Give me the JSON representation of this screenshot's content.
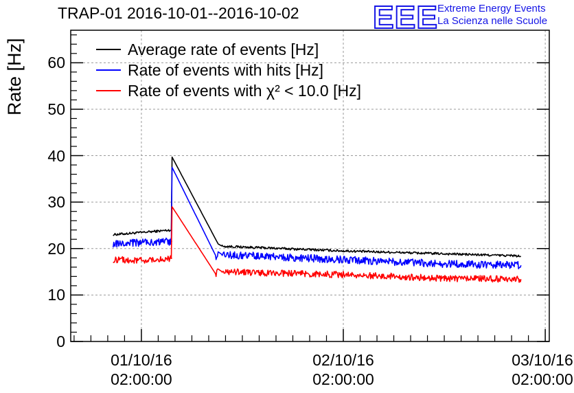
{
  "header": {
    "title": "TRAP-01 2016-10-01--2016-10-02",
    "logo_text": "EEE",
    "logo_line1": "Extreme Energy Events",
    "logo_line2": "La Scienza nelle Scuole"
  },
  "chart_data": {
    "type": "line",
    "title": "TRAP-01 2016-10-01--2016-10-02",
    "xlabel": "",
    "ylabel": "Rate [Hz]",
    "ylim": [
      0,
      67
    ],
    "xlim": [
      -0.35,
      2.02
    ],
    "y_ticks": [
      "0",
      "10",
      "20",
      "30",
      "40",
      "50",
      "60"
    ],
    "x_ticks": [
      {
        "date": "01/10/16",
        "time": "02:00:00"
      },
      {
        "date": "02/10/16",
        "time": "02:00:00"
      },
      {
        "date": "03/10/16",
        "time": "02:00:00"
      }
    ],
    "grid": true,
    "legend_position": "top-left",
    "series": [
      {
        "name": "Average rate of events [Hz]",
        "color": "#000000",
        "noise": 0.25,
        "x": [
          -0.14,
          0.01,
          0.15,
          0.148,
          0.152,
          0.38,
          0.4,
          1.0,
          1.8,
          1.84,
          1.88
        ],
        "y": [
          23.0,
          23.5,
          24.0,
          24.0,
          39.7,
          21.0,
          20.5,
          19.5,
          18.5,
          18.5,
          18.3
        ]
      },
      {
        "name": "Rate of events with hits [Hz]",
        "color": "#0000ff",
        "noise": 0.8,
        "x": [
          -0.14,
          0.01,
          0.15,
          0.148,
          0.152,
          0.37,
          0.38,
          0.4,
          1.0,
          1.5,
          1.88
        ],
        "y": [
          21.0,
          21.3,
          21.5,
          21.5,
          37.5,
          18.3,
          19.3,
          18.7,
          17.6,
          16.7,
          16.4
        ]
      },
      {
        "name": "Rate of events with χ² < 10.0 [Hz]",
        "color": "#ff0000",
        "noise": 0.7,
        "x": [
          -0.14,
          0.01,
          0.15,
          0.148,
          0.152,
          0.37,
          0.38,
          0.4,
          1.0,
          1.5,
          1.88
        ],
        "y": [
          17.6,
          17.5,
          17.9,
          17.9,
          29.0,
          14.4,
          15.6,
          15.0,
          14.4,
          13.6,
          13.4
        ]
      }
    ]
  }
}
